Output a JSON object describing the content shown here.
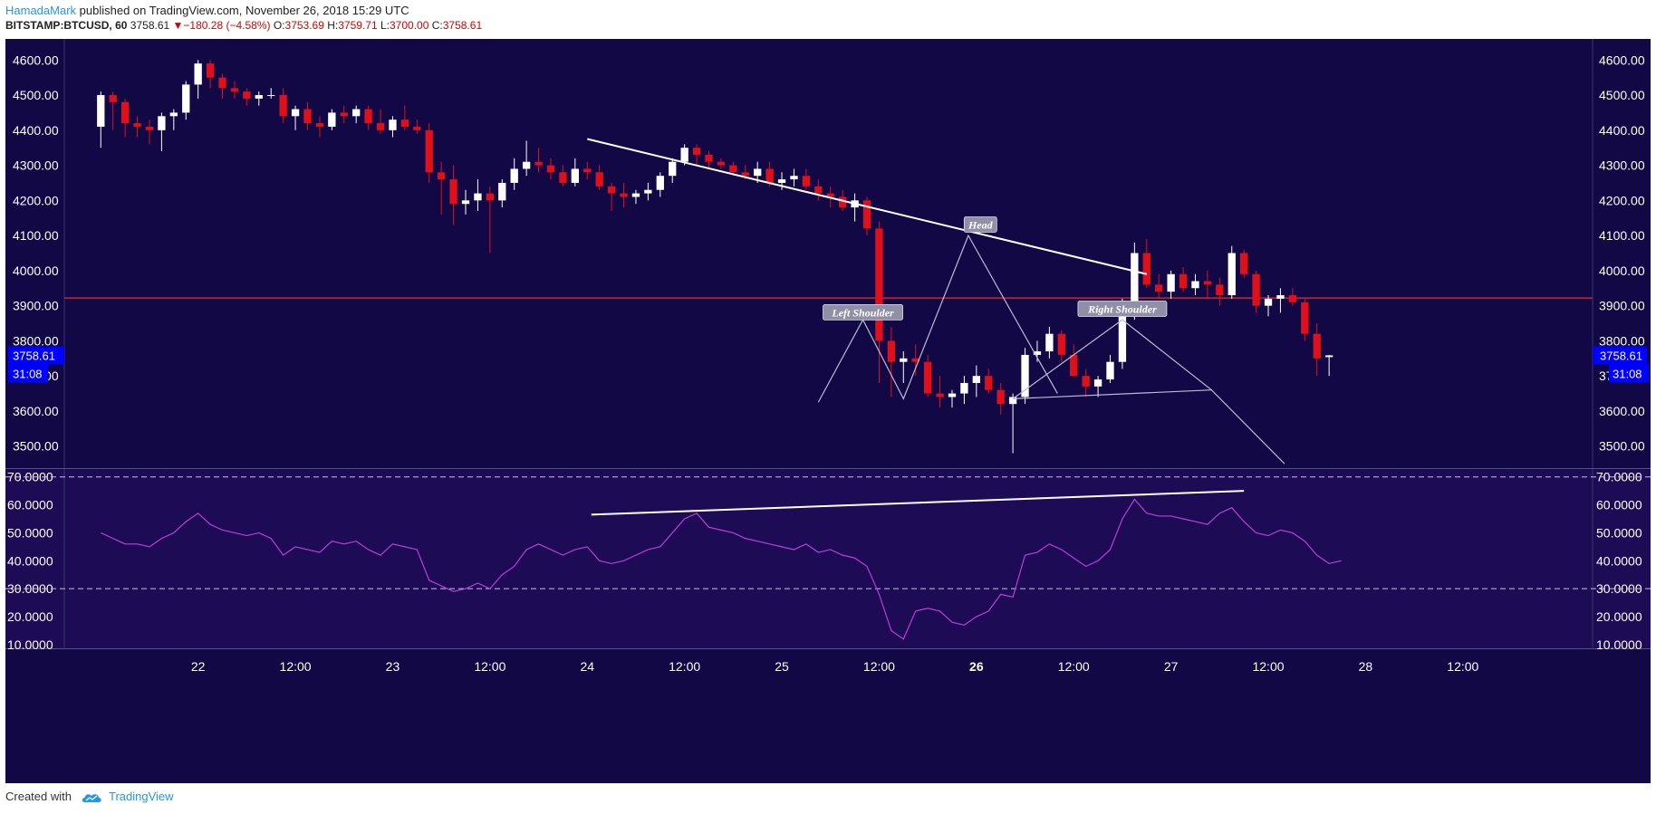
{
  "header": {
    "author": "HamadaMark",
    "published_text": "published on TradingView.com, November 26, 2018 15:29 UTC",
    "symbol": "BITSTAMP:BTCUSD, 60",
    "last": "3758.61",
    "change": "−180.28 (−4.58%)",
    "open_label": "O:",
    "open": "3753.69",
    "high_label": "H:",
    "high": "3759.71",
    "low_label": "L:",
    "low": "3700.00",
    "close_label": "C:",
    "close": "3758.61",
    "down_arrow": "▼"
  },
  "footer": {
    "created_with": "Created with",
    "brand": "TradingView",
    "logo_icon": "tradingview-cloud-icon"
  },
  "colors": {
    "background": "#120845",
    "rsi_background": "#1e0b55",
    "up_candle": "#ffffff",
    "down_candle": "#e0101a",
    "resistance_line": "#c62828",
    "rsi_line": "#ba3fd6",
    "price_badge": "#0000ff"
  },
  "chart_data": [
    {
      "type": "candlestick",
      "symbol": "BITSTAMP:BTCUSD",
      "interval": "60",
      "y_ticks": [
        "4600.00",
        "4500.00",
        "4400.00",
        "4300.00",
        "4200.00",
        "4100.00",
        "4000.00",
        "3900.00",
        "3800.00",
        "3700.00",
        "3600.00",
        "3500.00"
      ],
      "ylim": [
        3440,
        4660
      ],
      "x_tick_labels": [
        {
          "text": "22",
          "hour": 12,
          "bold": false
        },
        {
          "text": "12:00",
          "hour": 24,
          "bold": false
        },
        {
          "text": "23",
          "hour": 36,
          "bold": false
        },
        {
          "text": "12:00",
          "hour": 48,
          "bold": false
        },
        {
          "text": "24",
          "hour": 60,
          "bold": false
        },
        {
          "text": "12:00",
          "hour": 72,
          "bold": false
        },
        {
          "text": "25",
          "hour": 84,
          "bold": false
        },
        {
          "text": "12:00",
          "hour": 96,
          "bold": false
        },
        {
          "text": "26",
          "hour": 108,
          "bold": true
        },
        {
          "text": "12:00",
          "hour": 120,
          "bold": false
        },
        {
          "text": "27",
          "hour": 132,
          "bold": false
        },
        {
          "text": "12:00",
          "hour": 144,
          "bold": false
        },
        {
          "text": "28",
          "hour": 156,
          "bold": false
        },
        {
          "text": "12:00",
          "hour": 168,
          "bold": false
        }
      ],
      "xlim": [
        -4.5,
        184
      ],
      "candle_hours_start": 0,
      "candle_hours_step": 1.5,
      "candles": [
        [
          4410,
          4510,
          4350,
          4500
        ],
        [
          4500,
          4510,
          4400,
          4480
        ],
        [
          4480,
          4490,
          4380,
          4420
        ],
        [
          4420,
          4440,
          4380,
          4410
        ],
        [
          4410,
          4430,
          4360,
          4400
        ],
        [
          4400,
          4450,
          4340,
          4440
        ],
        [
          4440,
          4460,
          4400,
          4450
        ],
        [
          4450,
          4540,
          4430,
          4530
        ],
        [
          4530,
          4600,
          4490,
          4590
        ],
        [
          4590,
          4600,
          4520,
          4550
        ],
        [
          4550,
          4560,
          4490,
          4520
        ],
        [
          4520,
          4540,
          4490,
          4510
        ],
        [
          4510,
          4520,
          4470,
          4490
        ],
        [
          4490,
          4510,
          4470,
          4500
        ],
        [
          4500,
          4520,
          4490,
          4500
        ],
        [
          4500,
          4520,
          4420,
          4440
        ],
        [
          4440,
          4470,
          4400,
          4460
        ],
        [
          4460,
          4480,
          4400,
          4420
        ],
        [
          4420,
          4440,
          4380,
          4410
        ],
        [
          4410,
          4460,
          4400,
          4450
        ],
        [
          4450,
          4470,
          4420,
          4440
        ],
        [
          4440,
          4470,
          4420,
          4460
        ],
        [
          4460,
          4470,
          4400,
          4420
        ],
        [
          4420,
          4460,
          4390,
          4400
        ],
        [
          4400,
          4440,
          4380,
          4430
        ],
        [
          4430,
          4470,
          4400,
          4410
        ],
        [
          4410,
          4430,
          4390,
          4400
        ],
        [
          4400,
          4420,
          4250,
          4280
        ],
        [
          4280,
          4310,
          4160,
          4260
        ],
        [
          4260,
          4300,
          4130,
          4190
        ],
        [
          4190,
          4230,
          4160,
          4200
        ],
        [
          4200,
          4260,
          4170,
          4220
        ],
        [
          4220,
          4240,
          4050,
          4200
        ],
        [
          4200,
          4260,
          4180,
          4250
        ],
        [
          4250,
          4320,
          4230,
          4290
        ],
        [
          4290,
          4370,
          4270,
          4310
        ],
        [
          4310,
          4350,
          4280,
          4300
        ],
        [
          4300,
          4320,
          4260,
          4280
        ],
        [
          4280,
          4300,
          4240,
          4250
        ],
        [
          4250,
          4320,
          4240,
          4290
        ],
        [
          4290,
          4310,
          4260,
          4280
        ],
        [
          4280,
          4300,
          4230,
          4240
        ],
        [
          4240,
          4250,
          4170,
          4220
        ],
        [
          4220,
          4250,
          4180,
          4210
        ],
        [
          4210,
          4230,
          4190,
          4220
        ],
        [
          4220,
          4250,
          4200,
          4230
        ],
        [
          4230,
          4280,
          4210,
          4270
        ],
        [
          4270,
          4320,
          4250,
          4310
        ],
        [
          4310,
          4360,
          4300,
          4350
        ],
        [
          4350,
          4360,
          4300,
          4330
        ],
        [
          4330,
          4340,
          4290,
          4310
        ],
        [
          4310,
          4320,
          4290,
          4300
        ],
        [
          4300,
          4310,
          4270,
          4280
        ],
        [
          4280,
          4300,
          4260,
          4270
        ],
        [
          4270,
          4310,
          4250,
          4290
        ],
        [
          4290,
          4310,
          4240,
          4250
        ],
        [
          4250,
          4280,
          4230,
          4260
        ],
        [
          4260,
          4290,
          4240,
          4270
        ],
        [
          4270,
          4290,
          4230,
          4240
        ],
        [
          4240,
          4260,
          4200,
          4220
        ],
        [
          4220,
          4240,
          4180,
          4210
        ],
        [
          4210,
          4230,
          4170,
          4180
        ],
        [
          4180,
          4220,
          4140,
          4200
        ],
        [
          4200,
          4210,
          4100,
          4120
        ],
        [
          4120,
          4140,
          3680,
          3800
        ],
        [
          3800,
          3840,
          3640,
          3740
        ],
        [
          3740,
          3770,
          3680,
          3750
        ],
        [
          3750,
          3790,
          3700,
          3740
        ],
        [
          3740,
          3760,
          3640,
          3650
        ],
        [
          3650,
          3700,
          3610,
          3640
        ],
        [
          3640,
          3660,
          3610,
          3650
        ],
        [
          3650,
          3700,
          3620,
          3680
        ],
        [
          3680,
          3730,
          3640,
          3700
        ],
        [
          3700,
          3720,
          3650,
          3660
        ],
        [
          3660,
          3680,
          3590,
          3620
        ],
        [
          3620,
          3650,
          3480,
          3640
        ],
        [
          3640,
          3780,
          3620,
          3760
        ],
        [
          3760,
          3800,
          3740,
          3770
        ],
        [
          3770,
          3840,
          3750,
          3820
        ],
        [
          3820,
          3830,
          3740,
          3760
        ],
        [
          3760,
          3790,
          3700,
          3700
        ],
        [
          3700,
          3720,
          3640,
          3670
        ],
        [
          3670,
          3700,
          3640,
          3690
        ],
        [
          3690,
          3760,
          3680,
          3740
        ],
        [
          3740,
          3920,
          3720,
          3880
        ],
        [
          3880,
          4080,
          3860,
          4050
        ],
        [
          4050,
          4090,
          3950,
          3960
        ],
        [
          3960,
          3990,
          3920,
          3940
        ],
        [
          3940,
          4000,
          3920,
          3990
        ],
        [
          3990,
          4010,
          3940,
          3950
        ],
        [
          3950,
          3990,
          3930,
          3970
        ],
        [
          3970,
          4000,
          3920,
          3960
        ],
        [
          3960,
          3980,
          3900,
          3930
        ],
        [
          3930,
          4070,
          3920,
          4050
        ],
        [
          4050,
          4060,
          3980,
          3990
        ],
        [
          3990,
          4000,
          3880,
          3900
        ],
        [
          3900,
          3930,
          3870,
          3920
        ],
        [
          3920,
          3950,
          3880,
          3930
        ],
        [
          3930,
          3950,
          3900,
          3910
        ],
        [
          3910,
          3920,
          3800,
          3820
        ],
        [
          3820,
          3850,
          3700,
          3750
        ],
        [
          3753.69,
          3759.71,
          3700,
          3758.61
        ]
      ]
    },
    {
      "type": "line",
      "name": "RSI",
      "y_ticks": [
        "70.0000",
        "60.0000",
        "50.0000",
        "40.0000",
        "30.0000",
        "20.0000",
        "10.0000"
      ],
      "ylim": [
        9,
        72.5
      ],
      "bands": [
        30,
        70
      ],
      "values": [
        50,
        48,
        46,
        46,
        45,
        48,
        50,
        54,
        57,
        53,
        51,
        50,
        49,
        50,
        48,
        42,
        45,
        44,
        43,
        47,
        46,
        47,
        44,
        42,
        46,
        45,
        44,
        33,
        31,
        29,
        30,
        32,
        30,
        35,
        38,
        44,
        46,
        44,
        42,
        44,
        45,
        40,
        39,
        40,
        42,
        44,
        45,
        50,
        55,
        57,
        52,
        51,
        50,
        48,
        47,
        46,
        45,
        44,
        46,
        43,
        44,
        42,
        41,
        38,
        28,
        15,
        12,
        22,
        23,
        22,
        18,
        17,
        20,
        22,
        28,
        27,
        42,
        43,
        46,
        44,
        41,
        38,
        40,
        44,
        55,
        62,
        57,
        56,
        56,
        55,
        54,
        53,
        57,
        59,
        54,
        50,
        49,
        51,
        50,
        47,
        42,
        39,
        40
      ]
    }
  ],
  "price_badge": {
    "price": "3758.61",
    "countdown": "31:08"
  },
  "annotations": {
    "head_label": "Head",
    "left_shoulder_label": "Left Shoulder",
    "right_shoulder_label": "Right Shoulder"
  }
}
